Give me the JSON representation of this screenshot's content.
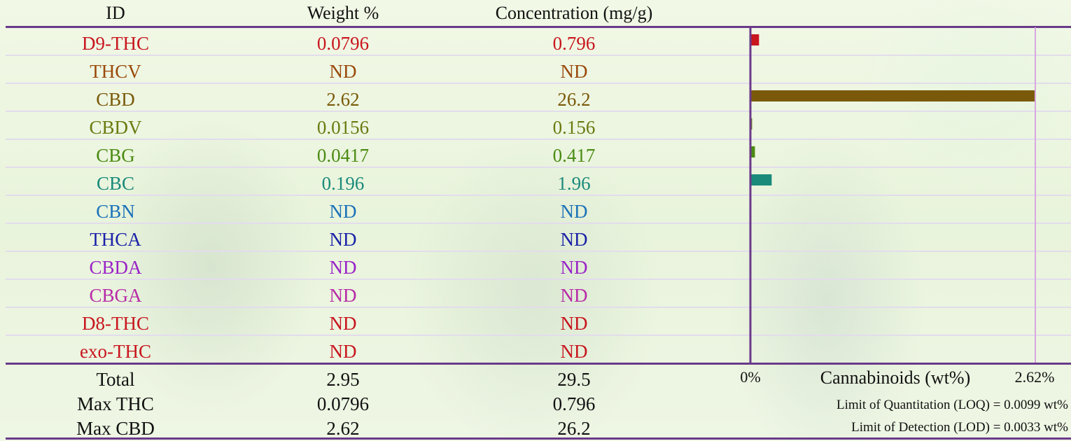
{
  "headers": {
    "id": "ID",
    "weight": "Weight %",
    "concentration": "Concentration (mg/g)"
  },
  "rows": [
    {
      "id": "D9-THC",
      "weight": "0.0796",
      "conc": "0.796",
      "color": "#c8161e"
    },
    {
      "id": "THCV",
      "weight": "ND",
      "conc": "ND",
      "color": "#9a4a0c"
    },
    {
      "id": "CBD",
      "weight": "2.62",
      "conc": "26.2",
      "color": "#7a5a0a"
    },
    {
      "id": "CBDV",
      "weight": "0.0156",
      "conc": "0.156",
      "color": "#6a7a10"
    },
    {
      "id": "CBG",
      "weight": "0.0417",
      "conc": "0.417",
      "color": "#4a8a12"
    },
    {
      "id": "CBC",
      "weight": "0.196",
      "conc": "1.96",
      "color": "#1a8a7a"
    },
    {
      "id": "CBN",
      "weight": "ND",
      "conc": "ND",
      "color": "#1a72b8"
    },
    {
      "id": "THCA",
      "weight": "ND",
      "conc": "ND",
      "color": "#1a22a8"
    },
    {
      "id": "CBDA",
      "weight": "ND",
      "conc": "ND",
      "color": "#9a22c8"
    },
    {
      "id": "CBGA",
      "weight": "ND",
      "conc": "ND",
      "color": "#b82aa8"
    },
    {
      "id": "D8-THC",
      "weight": "ND",
      "conc": "ND",
      "color": "#c8161e"
    },
    {
      "id": "exo-THC",
      "weight": "ND",
      "conc": "ND",
      "color": "#c8161e"
    }
  ],
  "summary": {
    "total": {
      "label": "Total",
      "weight": "2.95",
      "conc": "29.5"
    },
    "max_thc": {
      "label": "Max THC",
      "weight": "0.0796",
      "conc": "0.796"
    },
    "max_cbd": {
      "label": "Max CBD",
      "weight": "2.62",
      "conc": "26.2"
    }
  },
  "chart_data": {
    "type": "bar",
    "orientation": "horizontal",
    "categories": [
      "D9-THC",
      "THCV",
      "CBD",
      "CBDV",
      "CBG",
      "CBC",
      "CBN",
      "THCA",
      "CBDA",
      "CBGA",
      "D8-THC",
      "exo-THC"
    ],
    "values": [
      0.0796,
      0,
      2.62,
      0.0156,
      0.0417,
      0.196,
      0,
      0,
      0,
      0,
      0,
      0
    ],
    "colors": [
      "#c8161e",
      "#9a4a0c",
      "#7a5a0a",
      "#6a7a10",
      "#4a8a12",
      "#1a8a7a",
      "#1a72b8",
      "#1a22a8",
      "#9a22c8",
      "#b82aa8",
      "#c8161e",
      "#c8161e"
    ],
    "xlabel": "Cannabinoids (wt%)",
    "xlim": [
      0,
      2.62
    ],
    "tick_labels": [
      "0%",
      "2.62%"
    ],
    "axis_color": "#6a3a8a",
    "max_line_color": "#d8a8e0"
  },
  "footnotes": {
    "loq": "Limit of Quantitation (LOQ) = 0.0099 wt%",
    "lod": "Limit of Detection (LOD) = 0.0033 wt%"
  }
}
